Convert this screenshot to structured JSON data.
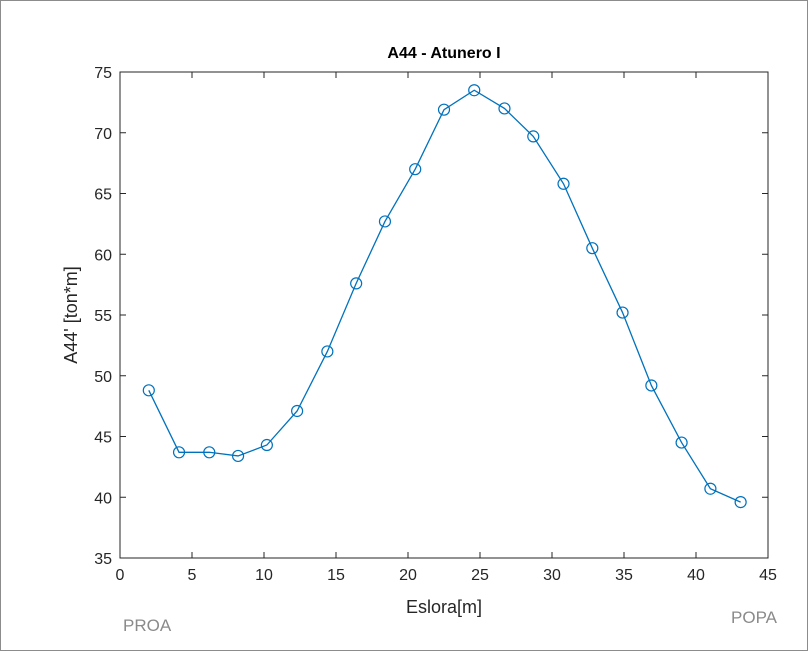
{
  "chart_data": {
    "type": "line",
    "title": "A44 - Atunero I",
    "xlabel": "Eslora[m]",
    "ylabel": "A44' [ton*m]",
    "xlim": [
      0,
      45
    ],
    "ylim": [
      35,
      75
    ],
    "xticks": [
      0,
      5,
      10,
      15,
      20,
      25,
      30,
      35,
      40,
      45
    ],
    "yticks": [
      35,
      40,
      45,
      50,
      55,
      60,
      65,
      70,
      75
    ],
    "grid": false,
    "marker": "circle",
    "color": "#0072BD",
    "series": [
      {
        "x": [
          2.0,
          4.1,
          6.2,
          8.2,
          10.2,
          12.3,
          14.4,
          16.4,
          18.4,
          20.5,
          22.5,
          24.6,
          26.7,
          28.7,
          30.8,
          32.8,
          34.9,
          36.9,
          39.0,
          41.0,
          43.1
        ],
        "y": [
          48.8,
          43.7,
          43.7,
          43.4,
          44.3,
          47.1,
          52.0,
          57.6,
          62.7,
          67.0,
          71.9,
          73.5,
          72.0,
          69.7,
          65.8,
          60.5,
          55.2,
          49.2,
          44.5,
          40.7,
          39.6
        ]
      }
    ],
    "annotations": {
      "left": "PROA",
      "right": "POPA"
    }
  }
}
